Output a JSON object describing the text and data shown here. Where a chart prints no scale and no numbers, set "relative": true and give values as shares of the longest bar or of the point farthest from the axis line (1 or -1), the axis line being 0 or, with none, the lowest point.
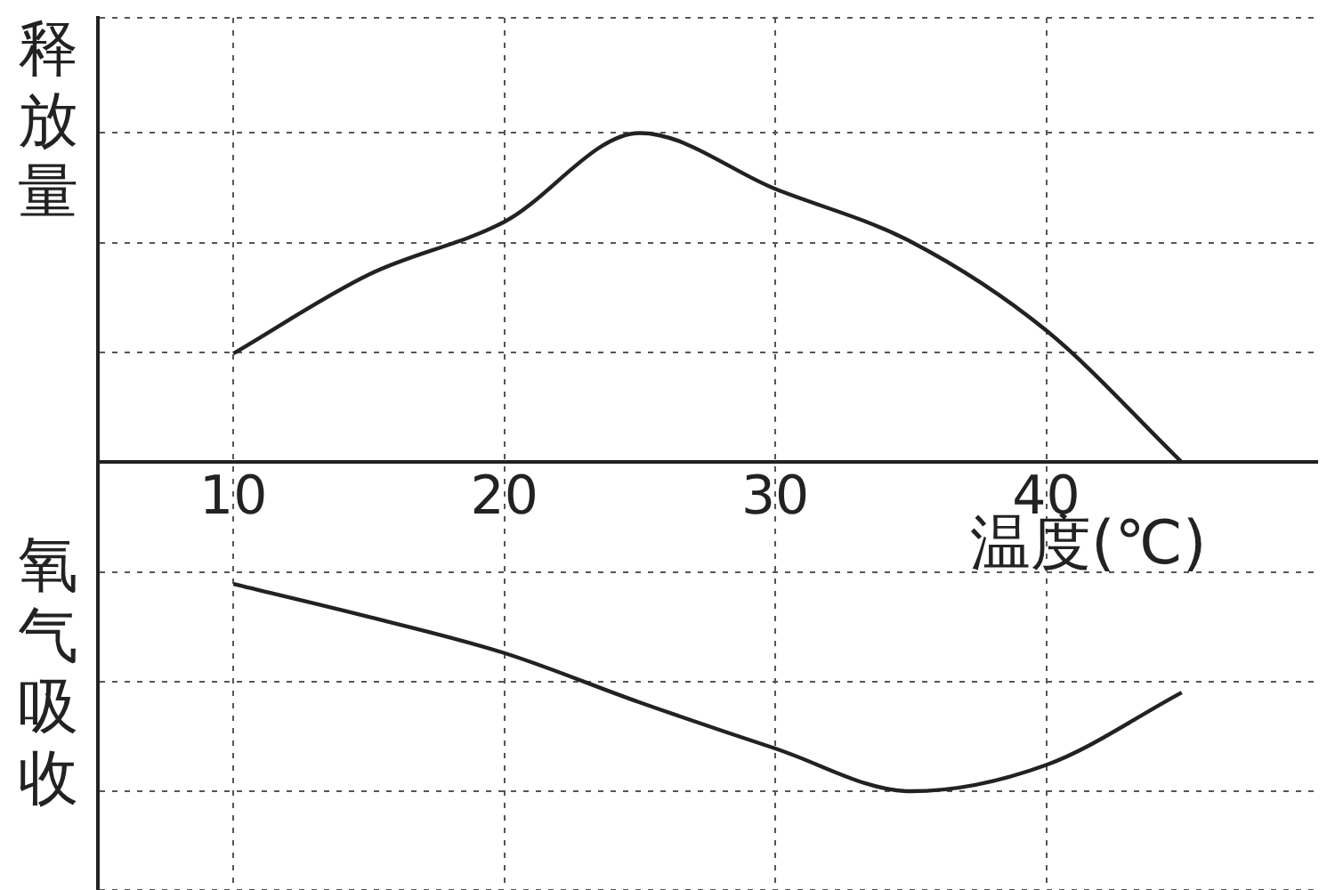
{
  "chart_data": {
    "type": "line",
    "relative": true,
    "xlabel": "温度(℃)",
    "ylabel": "释放量",
    "annotations": [
      "氧气吸收"
    ],
    "x": [
      10,
      15,
      20,
      25,
      30,
      35,
      40,
      45
    ],
    "xlim": [
      5,
      50
    ],
    "xticks": [
      10,
      20,
      30,
      40
    ],
    "grid": true,
    "marker": "none",
    "series": [
      {
        "color": "#222222",
        "values": [
          0.33,
          0.57,
          0.73,
          1,
          0.83,
          0.67,
          0.4,
          0
        ]
      },
      {
        "color": "#222222",
        "values": [
          -0.37,
          -0.47,
          -0.58,
          -0.73,
          -0.87,
          -1,
          -0.92,
          -0.7
        ]
      }
    ]
  }
}
